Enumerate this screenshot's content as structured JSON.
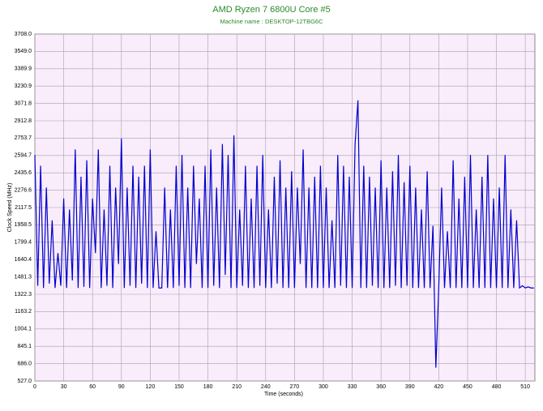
{
  "chart_data": {
    "type": "line",
    "title": "AMD Ryzen 7 6800U Core #5",
    "subtitle": "Machine name : DESKTOP-12TBG6C",
    "x_label": "Time (seconds)",
    "y_label": "Clock Speed (MHz)",
    "x": [
      0,
      3,
      6,
      9,
      12,
      15,
      18,
      21,
      24,
      27,
      30,
      33,
      36,
      39,
      42,
      45,
      48,
      51,
      54,
      57,
      60,
      63,
      66,
      69,
      72,
      75,
      78,
      81,
      84,
      87,
      90,
      93,
      96,
      99,
      102,
      105,
      108,
      111,
      114,
      117,
      120,
      123,
      126,
      129,
      132,
      135,
      138,
      141,
      144,
      147,
      150,
      153,
      156,
      159,
      162,
      165,
      168,
      171,
      174,
      177,
      180,
      183,
      186,
      189,
      192,
      195,
      198,
      201,
      204,
      207,
      210,
      213,
      216,
      219,
      222,
      225,
      228,
      231,
      234,
      237,
      240,
      243,
      246,
      249,
      252,
      255,
      258,
      261,
      264,
      267,
      270,
      273,
      276,
      279,
      282,
      285,
      288,
      291,
      294,
      297,
      300,
      303,
      306,
      309,
      312,
      315,
      318,
      321,
      324,
      327,
      330,
      333,
      336,
      339,
      342,
      345,
      348,
      351,
      354,
      357,
      360,
      363,
      366,
      369,
      372,
      375,
      378,
      381,
      384,
      387,
      390,
      393,
      396,
      399,
      402,
      405,
      408,
      411,
      414,
      417,
      420,
      423,
      426,
      429,
      432,
      435,
      438,
      441,
      444,
      447,
      450,
      453,
      456,
      459,
      462,
      465,
      468,
      471,
      474,
      477,
      480,
      483,
      486,
      489,
      492,
      495,
      498,
      501,
      504,
      507,
      510,
      513,
      516,
      519
    ],
    "series": [
      {
        "name": "Clock Speed",
        "color": "#0000cc",
        "values": [
          2600,
          1400,
          2500,
          1380,
          2300,
          1420,
          2000,
          1380,
          1700,
          1400,
          2200,
          1380,
          2100,
          1450,
          2650,
          1380,
          2400,
          1390,
          2550,
          1380,
          2200,
          1700,
          2650,
          1380,
          2100,
          1400,
          2500,
          1380,
          2300,
          1600,
          2750,
          1380,
          2300,
          1400,
          2500,
          1380,
          2400,
          1420,
          2500,
          1380,
          2650,
          1380,
          1900,
          1380,
          1380,
          2300,
          1380,
          2100,
          1380,
          2500,
          1400,
          2600,
          1380,
          2300,
          1380,
          2500,
          1600,
          2200,
          1380,
          2500,
          1380,
          2650,
          1400,
          2300,
          1380,
          2700,
          1500,
          2600,
          1380,
          2780,
          1380,
          2100,
          1400,
          2500,
          1380,
          2200,
          1380,
          2500,
          1400,
          2600,
          1380,
          2100,
          1380,
          2400,
          1420,
          2550,
          1380,
          2300,
          1380,
          2450,
          1380,
          2300,
          1600,
          2650,
          1380,
          2300,
          1380,
          2400,
          1380,
          2500,
          1380,
          2300,
          1380,
          2000,
          1380,
          2600,
          1400,
          2500,
          1380,
          2400,
          1380,
          2700,
          3100,
          1380,
          2500,
          1380,
          2400,
          1400,
          2300,
          1380,
          2550,
          1380,
          2300,
          1380,
          2450,
          1400,
          2600,
          1380,
          2350,
          1400,
          2500,
          1380,
          2300,
          1380,
          2100,
          1380,
          2450,
          1380,
          1950,
          650,
          1380,
          2300,
          1380,
          1900,
          1380,
          2550,
          1380,
          2200,
          1380,
          2400,
          1380,
          2600,
          1380,
          2100,
          1380,
          2400,
          1380,
          2600,
          1380,
          2200,
          1380,
          2300,
          1380,
          2600,
          1380,
          2100,
          1380,
          2000,
          1380,
          1400,
          1380,
          1390,
          1380,
          1380
        ]
      }
    ],
    "xlim": [
      0,
      520
    ],
    "ylim": [
      527,
      3708
    ],
    "xticks": [
      0,
      30,
      60,
      90,
      120,
      150,
      180,
      210,
      240,
      270,
      300,
      330,
      360,
      390,
      420,
      450,
      480,
      510
    ],
    "yticks": [
      {
        "value": 527,
        "label": "527.0"
      },
      {
        "value": 686,
        "label": "686.0"
      },
      {
        "value": 845.1,
        "label": "845.1"
      },
      {
        "value": 1004.1,
        "label": "1004.1"
      },
      {
        "value": 1163.2,
        "label": "1163.2"
      },
      {
        "value": 1322.3,
        "label": "1322.3"
      },
      {
        "value": 1481.3,
        "label": "1481.3"
      },
      {
        "value": 1640.4,
        "label": "1640.4"
      },
      {
        "value": 1799.4,
        "label": "1799.4"
      },
      {
        "value": 1958.5,
        "label": "1958.5"
      },
      {
        "value": 2117.5,
        "label": "2117.5"
      },
      {
        "value": 2276.6,
        "label": "2276.6"
      },
      {
        "value": 2435.6,
        "label": "2435.6"
      },
      {
        "value": 2594.7,
        "label": "2594.7"
      },
      {
        "value": 2753.7,
        "label": "2753.7"
      },
      {
        "value": 2912.8,
        "label": "2912.8"
      },
      {
        "value": 3071.8,
        "label": "3071.8"
      },
      {
        "value": 3230.9,
        "label": "3230.9"
      },
      {
        "value": 3389.9,
        "label": "3389.9"
      },
      {
        "value": 3549,
        "label": "3549.0"
      },
      {
        "value": 3708,
        "label": "3708.0"
      }
    ],
    "grid": true
  }
}
